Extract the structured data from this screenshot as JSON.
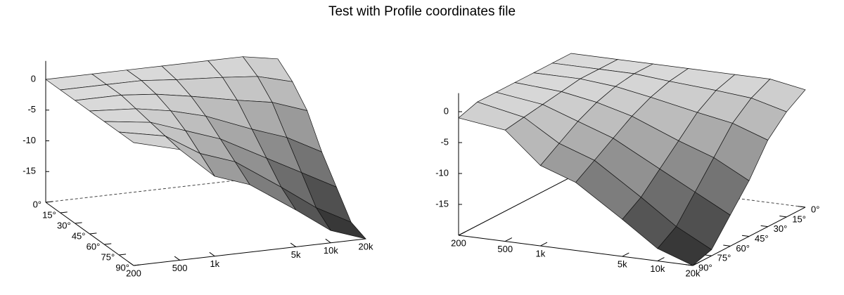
{
  "title": "Test with Profile coordinates file",
  "chart_data": [
    {
      "type": "surface",
      "logx": true,
      "x": [
        200,
        500,
        1000,
        2000,
        5000,
        10000,
        20000
      ],
      "y": [
        0,
        15,
        30,
        45,
        60,
        75,
        90
      ],
      "z": [
        [
          0,
          0,
          0,
          0,
          0,
          0,
          -1
        ],
        [
          0,
          0,
          0,
          -0.5,
          -1,
          -1.5,
          -3
        ],
        [
          0,
          0,
          -0.5,
          -1.5,
          -3,
          -4,
          -6
        ],
        [
          0,
          -0.5,
          -1.5,
          -3,
          -6,
          -8,
          -11
        ],
        [
          0,
          -1,
          -3,
          -5,
          -9,
          -12,
          -15
        ],
        [
          0,
          -1.5,
          -5,
          -7,
          -12,
          -16,
          -19
        ],
        [
          0,
          -2,
          -7,
          -9,
          -14,
          -18,
          -20
        ]
      ],
      "xlim": [
        200,
        20000
      ],
      "ylim": [
        0,
        90
      ],
      "zlim": [
        -20,
        3
      ],
      "xticks": [
        200,
        500,
        {
          "value": 1000,
          "label": "1k"
        },
        {
          "value": 5000,
          "label": "5k"
        },
        {
          "value": 10000,
          "label": "10k"
        },
        {
          "value": 20000,
          "label": "20k"
        }
      ],
      "yticks": [
        {
          "value": 0,
          "label": "0°"
        },
        {
          "value": 15,
          "label": "15°"
        },
        {
          "value": 30,
          "label": "30°"
        },
        {
          "value": 45,
          "label": "45°"
        },
        {
          "value": 60,
          "label": "60°"
        },
        {
          "value": 75,
          "label": "75°"
        },
        {
          "value": 90,
          "label": "90°"
        }
      ],
      "zticks": [
        0,
        -5,
        -10,
        -15
      ]
    },
    {
      "type": "surface",
      "logx": true,
      "x": [
        200,
        500,
        1000,
        2000,
        5000,
        10000,
        20000
      ],
      "y": [
        0,
        15,
        30,
        45,
        60,
        75,
        90
      ],
      "z": [
        [
          0,
          0,
          0,
          0,
          0,
          0,
          -1
        ],
        [
          0,
          0,
          0,
          -0.5,
          -1,
          -1.5,
          -3
        ],
        [
          0,
          0,
          -0.5,
          -1.5,
          -3,
          -4,
          -6
        ],
        [
          0,
          -0.5,
          -1.5,
          -3,
          -6,
          -8,
          -11
        ],
        [
          0,
          -1,
          -3,
          -5,
          -9,
          -12,
          -15
        ],
        [
          0,
          -1.5,
          -5,
          -7,
          -12,
          -16,
          -19
        ],
        [
          -1,
          -2,
          -7,
          -9,
          -14,
          -18,
          -20
        ]
      ],
      "xlim": [
        200,
        20000
      ],
      "ylim": [
        0,
        90
      ],
      "zlim": [
        -20,
        3
      ],
      "xticks": [
        200,
        500,
        {
          "value": 1000,
          "label": "1k"
        },
        {
          "value": 5000,
          "label": "5k"
        },
        {
          "value": 10000,
          "label": "10k"
        },
        {
          "value": 20000,
          "label": "20k"
        }
      ],
      "yticks": [
        {
          "value": 0,
          "label": "0°"
        },
        {
          "value": 15,
          "label": "15°"
        },
        {
          "value": 30,
          "label": "30°"
        },
        {
          "value": 45,
          "label": "45°"
        },
        {
          "value": 60,
          "label": "60°"
        },
        {
          "value": 75,
          "label": "75°"
        },
        {
          "value": 90,
          "label": "90°"
        }
      ],
      "zticks": [
        0,
        -5,
        -10,
        -15
      ]
    }
  ]
}
